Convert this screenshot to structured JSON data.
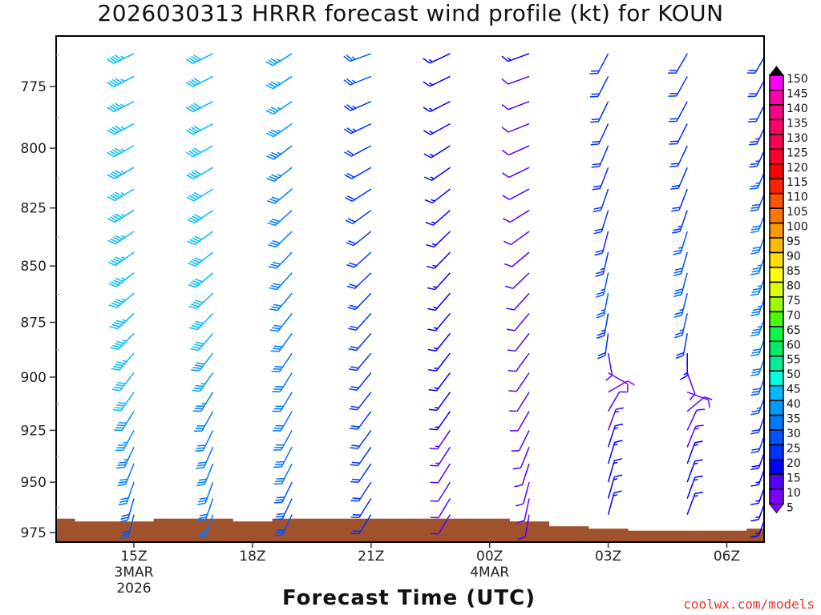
{
  "chart_data": {
    "type": "wind_barb_profile",
    "title": "2026030313 HRRR forecast wind profile (kt) for KOUN",
    "xlabel": "Forecast Time (UTC)",
    "ylabel": "",
    "credit": "coolwx.com/models",
    "y_scale": "log-pressure (hPa, inverted)",
    "ylim": [
      980,
      755
    ],
    "xlim_hours_since_00Z_3MAR": [
      13,
      31
    ],
    "y_ticks": [
      {
        "value": 775,
        "label": "775"
      },
      {
        "value": 800,
        "label": "800"
      },
      {
        "value": 825,
        "label": "825"
      },
      {
        "value": 850,
        "label": "850"
      },
      {
        "value": 875,
        "label": "875"
      },
      {
        "value": 900,
        "label": "900"
      },
      {
        "value": 925,
        "label": "925"
      },
      {
        "value": 950,
        "label": "950"
      },
      {
        "value": 975,
        "label": "975"
      }
    ],
    "x_ticks": [
      {
        "hour": 15,
        "label": "15Z",
        "sub": [
          "3MAR",
          "2026"
        ]
      },
      {
        "hour": 18,
        "label": "18Z",
        "sub": []
      },
      {
        "hour": 21,
        "label": "21Z",
        "sub": []
      },
      {
        "hour": 24,
        "label": "00Z",
        "sub": [
          "4MAR"
        ]
      },
      {
        "hour": 27,
        "label": "03Z",
        "sub": []
      },
      {
        "hour": 30,
        "label": "06Z",
        "sub": []
      }
    ],
    "levels_hPa": [
      762,
      771,
      781,
      790,
      799,
      808,
      817,
      826,
      835,
      844,
      853,
      862,
      871,
      880,
      889,
      898,
      907,
      916,
      925,
      933,
      941,
      950,
      958,
      966
    ],
    "columns": [
      {
        "time": "15Z",
        "hour": 15,
        "dir": [
          244,
          243,
          243,
          242,
          241,
          240,
          239,
          238,
          236,
          234,
          232,
          230,
          227,
          224,
          221,
          218,
          215,
          212,
          208,
          205,
          202,
          199,
          196,
          194
        ],
        "spd": [
          43,
          43,
          43,
          43,
          43,
          43,
          43,
          43,
          43,
          43,
          43,
          44,
          44,
          44,
          43,
          42,
          40,
          38,
          36,
          34,
          32,
          30,
          29,
          28
        ]
      },
      {
        "time": "17Z",
        "hour": 17,
        "dir": [
          244,
          243,
          243,
          242,
          241,
          240,
          238,
          236,
          234,
          232,
          230,
          227,
          224,
          221,
          218,
          215,
          212,
          209,
          206,
          204,
          202,
          200,
          199,
          198
        ],
        "spd": [
          42,
          42,
          42,
          42,
          42,
          42,
          42,
          42,
          42,
          42,
          42,
          42,
          41,
          40,
          38,
          36,
          34,
          32,
          31,
          30,
          30,
          30,
          30,
          30
        ]
      },
      {
        "time": "19Z",
        "hour": 19,
        "dir": [
          238,
          237,
          236,
          235,
          233,
          232,
          230,
          228,
          226,
          224,
          222,
          220,
          218,
          216,
          214,
          212,
          211,
          210,
          209,
          208,
          207,
          206,
          205,
          205
        ],
        "spd": [
          37,
          36,
          36,
          35,
          34,
          33,
          32,
          32,
          32,
          32,
          32,
          32,
          32,
          31,
          31,
          30,
          30,
          30,
          30,
          30,
          30,
          29,
          28,
          28
        ]
      },
      {
        "time": "21Z",
        "hour": 21,
        "dir": [
          250,
          248,
          246,
          244,
          242,
          240,
          237,
          234,
          231,
          228,
          226,
          224,
          222,
          221,
          220,
          219,
          218,
          217,
          216,
          215,
          214,
          213,
          212,
          212
        ],
        "spd": [
          26,
          25,
          24,
          23,
          22,
          22,
          21,
          21,
          20,
          20,
          20,
          20,
          20,
          20,
          20,
          20,
          20,
          20,
          20,
          20,
          20,
          20,
          20,
          20
        ]
      },
      {
        "time": "23Z",
        "hour": 23,
        "dir": [
          245,
          244,
          243,
          241,
          238,
          235,
          232,
          229,
          226,
          224,
          222,
          221,
          220,
          219,
          218,
          217,
          216,
          215,
          214,
          213,
          212,
          212,
          211,
          211
        ],
        "spd": [
          17,
          16,
          16,
          15,
          15,
          15,
          15,
          15,
          15,
          15,
          15,
          15,
          15,
          15,
          15,
          15,
          15,
          15,
          14,
          13,
          12,
          11,
          10,
          10
        ]
      },
      {
        "time": "01Z",
        "hour": 25,
        "dir": [
          250,
          250,
          249,
          248,
          246,
          244,
          242,
          238,
          234,
          230,
          226,
          222,
          220,
          218,
          216,
          214,
          212,
          210,
          206,
          202,
          198,
          195,
          192,
          190
        ],
        "spd": [
          16,
          12,
          12,
          12,
          12,
          12,
          12,
          12,
          12,
          12,
          12,
          12,
          12,
          12,
          12,
          12,
          12,
          12,
          11,
          10,
          10,
          10,
          10,
          10
        ]
      },
      {
        "time": "03Z",
        "hour": 27,
        "dir": [
          208,
          207,
          206,
          205,
          203,
          201,
          199,
          197,
          195,
          193,
          192,
          191,
          190,
          188,
          170,
          120,
          60,
          30,
          20,
          18,
          17,
          16,
          16,
          15
        ],
        "spd": [
          21,
          21,
          21,
          20,
          20,
          20,
          20,
          20,
          22,
          24,
          25,
          25,
          24,
          20,
          12,
          8,
          8,
          10,
          14,
          15,
          15,
          15,
          15,
          15
        ]
      },
      {
        "time": "05Z",
        "hour": 29,
        "dir": [
          210,
          209,
          208,
          207,
          205,
          203,
          201,
          199,
          197,
          196,
          195,
          194,
          193,
          190,
          180,
          160,
          110,
          50,
          25,
          22,
          20,
          20,
          20,
          20
        ],
        "spd": [
          20,
          20,
          20,
          20,
          20,
          20,
          22,
          24,
          26,
          28,
          28,
          27,
          25,
          22,
          15,
          10,
          8,
          10,
          12,
          14,
          15,
          15,
          15,
          15
        ]
      },
      {
        "time": "07Z",
        "hour": 31,
        "dir": [
          210,
          208,
          207,
          205,
          204,
          203,
          202,
          201,
          200,
          200,
          200,
          200,
          200,
          200,
          200,
          200,
          200,
          200,
          200,
          200,
          200,
          200,
          200,
          200
        ],
        "spd": [
          22,
          22,
          22,
          23,
          24,
          26,
          28,
          30,
          32,
          33,
          34,
          34,
          33,
          32,
          30,
          28,
          25,
          22,
          20,
          18,
          16,
          15,
          15,
          15
        ]
      }
    ],
    "surface_pressure": {
      "hours": [
        13,
        14,
        15,
        16,
        17,
        18,
        19,
        20,
        21,
        22,
        23,
        24,
        25,
        26,
        27,
        28,
        29,
        30,
        31
      ],
      "hPa": [
        968,
        969.4,
        969.4,
        968,
        968,
        969.4,
        968,
        968,
        968,
        968,
        968,
        968,
        969.4,
        971.8,
        973,
        974,
        974,
        974,
        973
      ],
      "color": "#a0522d"
    },
    "colorbar": {
      "labels": [
        "150",
        "145",
        "140",
        "135",
        "130",
        "125",
        "120",
        "115",
        "110",
        "105",
        "100",
        "95",
        "90",
        "85",
        "80",
        "75",
        "70",
        "65",
        "60",
        "55",
        "50",
        "45",
        "40",
        "35",
        "30",
        "25",
        "20",
        "15",
        "10",
        "5"
      ],
      "colors_low_to_high": [
        "#7a00ff",
        "#5500ff",
        "#0000ff",
        "#0033ff",
        "#0055ff",
        "#0077ff",
        "#0099ff",
        "#00bbff",
        "#00ffdd",
        "#00ee99",
        "#00ee66",
        "#00ff44",
        "#44ff00",
        "#99ff00",
        "#ddff00",
        "#ffff00",
        "#ffdd00",
        "#ffbb00",
        "#ff9900",
        "#ff7700",
        "#ff5500",
        "#ff2200",
        "#ff0000",
        "#ff0033",
        "#ff0055",
        "#ff0066",
        "#ff0088",
        "#ff00aa",
        "#ff00ff"
      ],
      "over_color": "#000000",
      "under_color": "#8800ff"
    }
  }
}
